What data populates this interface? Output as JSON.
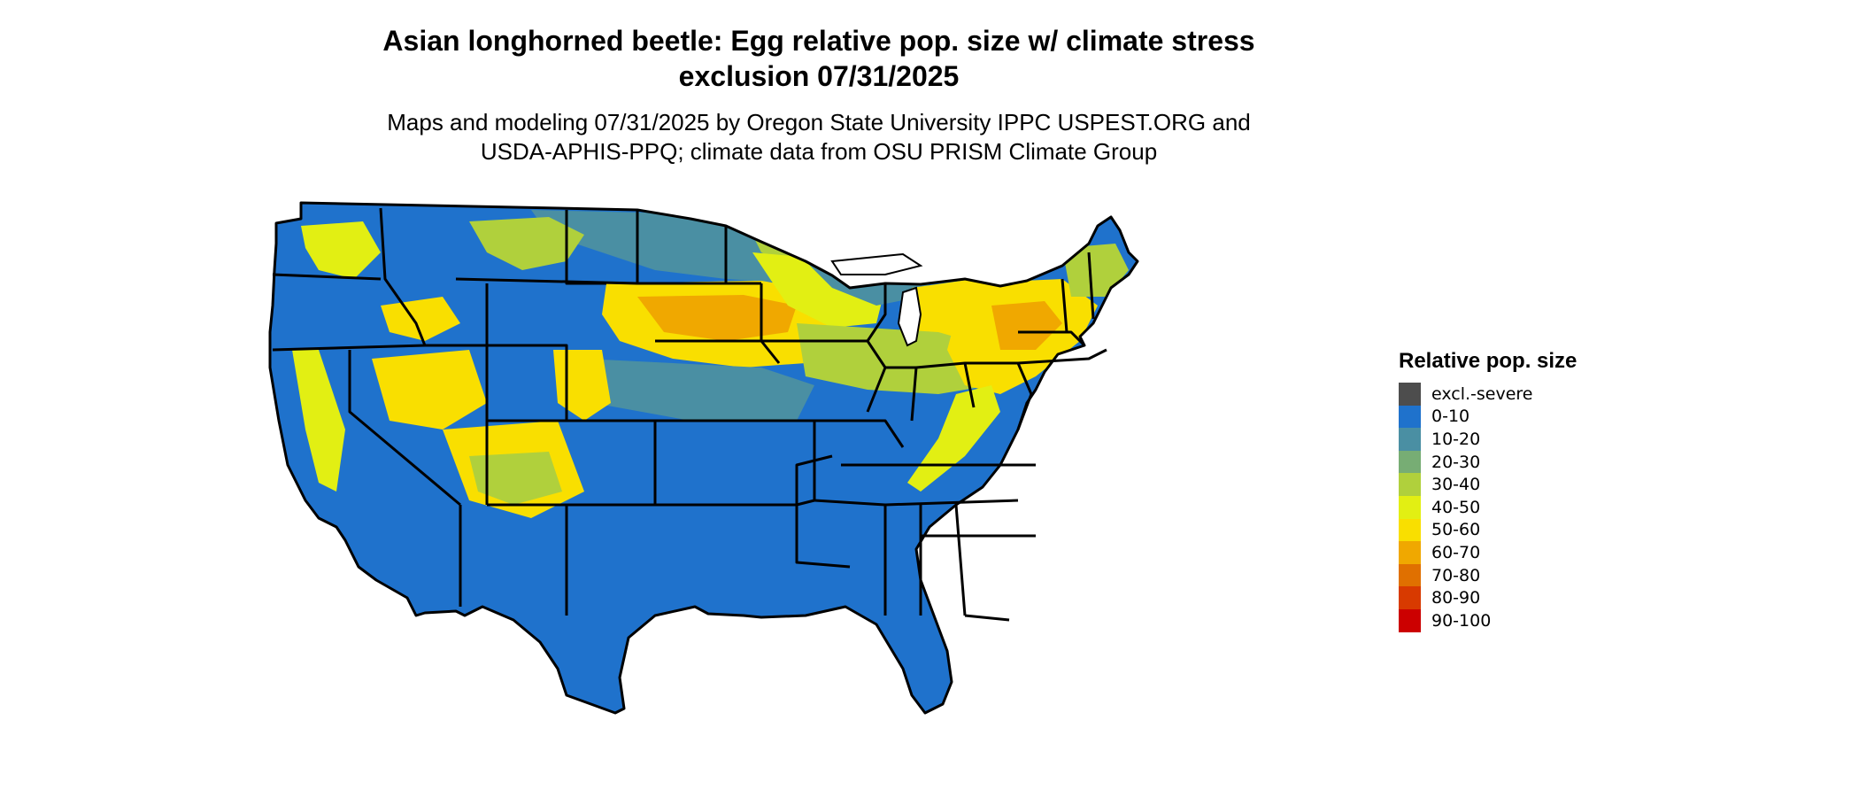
{
  "title": {
    "line1": "Asian longhorned beetle: Egg relative pop. size w/ climate stress",
    "line2": "exclusion 07/31/2025"
  },
  "subtitle": {
    "line1": "Maps and modeling 07/31/2025 by Oregon State University IPPC USPEST.ORG and",
    "line2": "USDA-APHIS-PPQ; climate data from OSU PRISM Climate Group"
  },
  "legend": {
    "title": "Relative pop. size",
    "items": [
      {
        "label": "excl.-severe",
        "color": "#4d4d4d"
      },
      {
        "label": "0-10",
        "color": "#1f72cc"
      },
      {
        "label": "10-20",
        "color": "#4a8fa3"
      },
      {
        "label": "20-30",
        "color": "#77ad74"
      },
      {
        "label": "30-40",
        "color": "#b0d03c"
      },
      {
        "label": "40-50",
        "color": "#e2ef13"
      },
      {
        "label": "50-60",
        "color": "#f9df00"
      },
      {
        "label": "60-70",
        "color": "#f0a800"
      },
      {
        "label": "70-80",
        "color": "#e07000"
      },
      {
        "label": "80-90",
        "color": "#d83a00"
      },
      {
        "label": "90-100",
        "color": "#cc0000"
      }
    ]
  },
  "map": {
    "region": "conterminous-united-states",
    "base_color": "#1f72cc",
    "border_color": "#000000",
    "accent_colors": {
      "yellow_green": "#b0d03c",
      "teal": "#4a8fa3",
      "yellow": "#f9df00",
      "orange": "#f0a800",
      "dark_gray": "#4d4d4d"
    }
  }
}
